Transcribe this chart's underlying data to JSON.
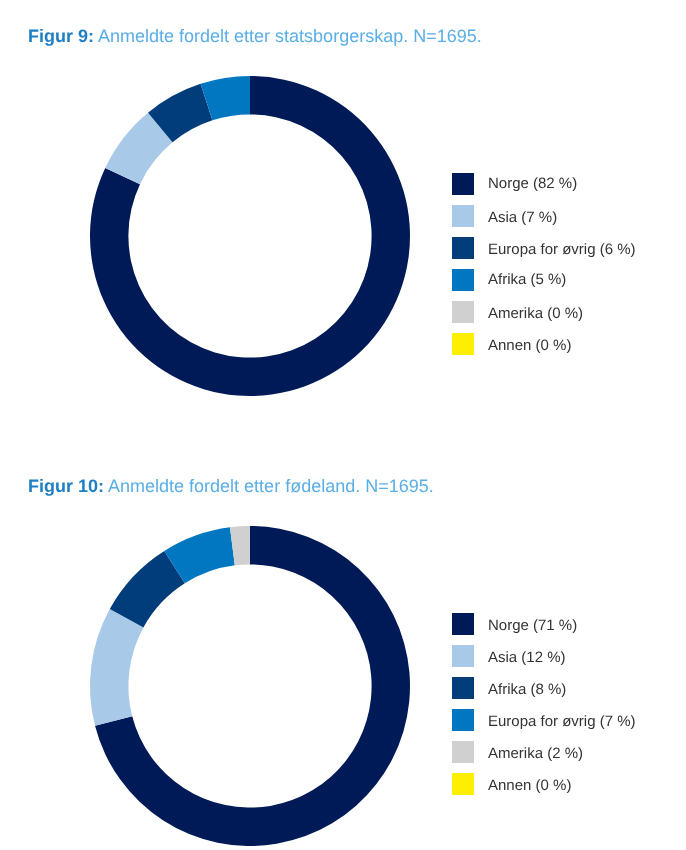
{
  "chart_data": [
    {
      "type": "donut",
      "title": "Figur 9: Anmeldte fordelt etter statsborgerskap. N=1695.",
      "categories": [
        "Norge (82 %)",
        "Asia (7 %)",
        "Europa for øvrig (6 %)",
        "Afrika (5 %)",
        "Amerika (0 %)",
        "Annen (0 %)"
      ],
      "values": [
        82,
        7,
        6,
        5,
        0,
        0
      ],
      "colors": [
        "#001a57",
        "#a9c9e8",
        "#003d7a",
        "#0077c0",
        "#d0d0d0",
        "#ffee00"
      ],
      "legend": "right"
    },
    {
      "type": "donut",
      "title": "Figur 10: Anmeldte fordelt etter fødeland. N=1695.",
      "categories": [
        "Norge (71 %)",
        "Asia (12 %)",
        "Afrika (8 %)",
        "Europa for øvrig (7 %)",
        "Amerika (2 %)",
        "Annen (0 %)"
      ],
      "values": [
        71,
        12,
        8,
        7,
        2,
        0
      ],
      "colors": [
        "#001a57",
        "#a9c9e8",
        "#003d7a",
        "#0077c0",
        "#d0d0d0",
        "#ffee00"
      ],
      "legend": "right"
    }
  ]
}
